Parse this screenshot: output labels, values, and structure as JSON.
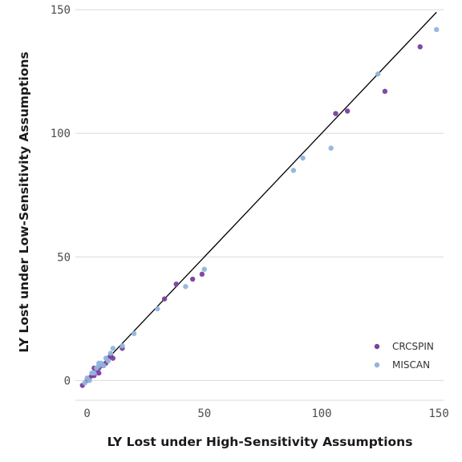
{
  "chart_data": {
    "type": "scatter",
    "xlabel": "LY Lost under High-Sensitivity Assumptions",
    "ylabel": "LY Lost under Low-Sensitivity Assumptions",
    "xlim": [
      -5,
      152
    ],
    "ylim": [
      -8,
      152
    ],
    "x_ticks": [
      0,
      50,
      100,
      150
    ],
    "y_ticks": [
      0,
      50,
      100,
      150
    ],
    "grid": "horizontal",
    "reference_line": "y = x",
    "legend_position": "bottom-right",
    "series": [
      {
        "name": "CRCSPIN",
        "color": "#7b3f9e",
        "points": [
          [
            -2,
            -2
          ],
          [
            0,
            0
          ],
          [
            1,
            1
          ],
          [
            2,
            2
          ],
          [
            3,
            2
          ],
          [
            3,
            5
          ],
          [
            4,
            4
          ],
          [
            5,
            5
          ],
          [
            5,
            3
          ],
          [
            6,
            6
          ],
          [
            7,
            6
          ],
          [
            8,
            7
          ],
          [
            9,
            9
          ],
          [
            10,
            10
          ],
          [
            11,
            9
          ],
          [
            15,
            13
          ],
          [
            33,
            33
          ],
          [
            38,
            39
          ],
          [
            45,
            41
          ],
          [
            49,
            43
          ],
          [
            106,
            108
          ],
          [
            111,
            109
          ],
          [
            127,
            117
          ],
          [
            142,
            135
          ]
        ]
      },
      {
        "name": "MISCAN",
        "color": "#92b4dc",
        "points": [
          [
            -1,
            -1
          ],
          [
            0,
            1
          ],
          [
            1,
            0
          ],
          [
            2,
            3
          ],
          [
            3,
            3
          ],
          [
            4,
            5
          ],
          [
            5,
            6
          ],
          [
            5,
            7
          ],
          [
            6,
            7
          ],
          [
            7,
            6
          ],
          [
            8,
            9
          ],
          [
            9,
            8
          ],
          [
            10,
            11
          ],
          [
            11,
            13
          ],
          [
            15,
            14
          ],
          [
            20,
            19
          ],
          [
            30,
            29
          ],
          [
            42,
            38
          ],
          [
            50,
            45
          ],
          [
            88,
            85
          ],
          [
            92,
            90
          ],
          [
            104,
            94
          ],
          [
            124,
            124
          ],
          [
            149,
            142
          ]
        ]
      }
    ]
  }
}
